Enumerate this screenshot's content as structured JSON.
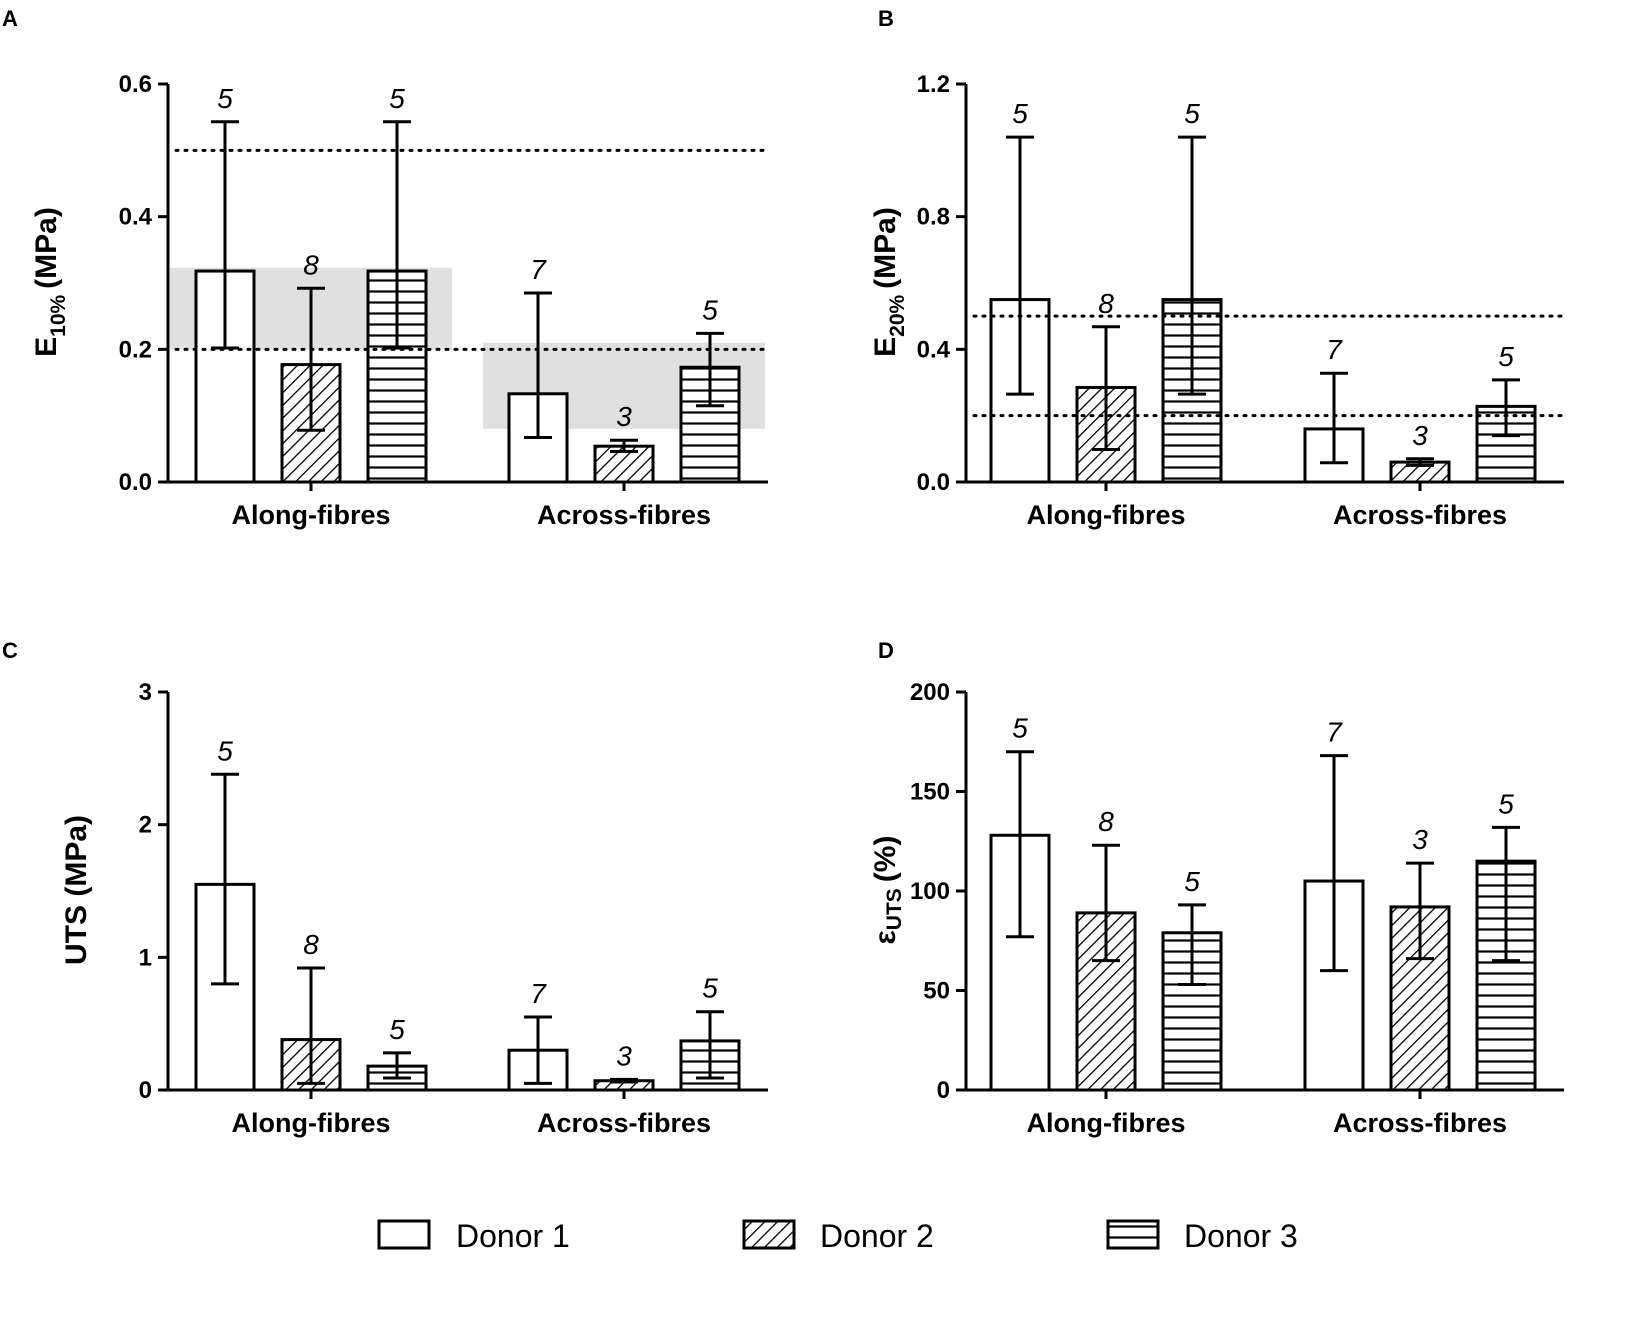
{
  "legend": {
    "items": [
      {
        "name": "Donor 1",
        "pattern": "none"
      },
      {
        "name": "Donor 2",
        "pattern": "diagonal"
      },
      {
        "name": "Donor 3",
        "pattern": "horizontal"
      }
    ]
  },
  "colors": {
    "axis": "#000000",
    "band": "#e0e0e0",
    "bar_fill": "#ffffff"
  },
  "chart_data": [
    {
      "panel": "A",
      "type": "bar",
      "ylabel_main": "E",
      "ylabel_sub": "10%",
      "ylabel_unit": "(MPa)",
      "categories": [
        "Along-fibres",
        "Across-fibres"
      ],
      "ylim": [
        0,
        0.6
      ],
      "yticks": [
        0.0,
        0.2,
        0.4,
        0.6
      ],
      "ytick_labels": [
        "0.0",
        "0.2",
        "0.4",
        "0.6"
      ],
      "series": [
        {
          "name": "Donor 1",
          "values": [
            0.318,
            0.133
          ],
          "err_low": [
            0.202,
            0.067
          ],
          "err_high": [
            0.543,
            0.285
          ],
          "n": [
            "5",
            "7"
          ]
        },
        {
          "name": "Donor 2",
          "values": [
            0.177,
            0.054
          ],
          "err_low": [
            0.078,
            0.046
          ],
          "err_high": [
            0.292,
            0.063
          ],
          "n": [
            "8",
            "3"
          ]
        },
        {
          "name": "Donor 3",
          "values": [
            0.318,
            0.173
          ],
          "err_low": [
            0.202,
            0.115
          ],
          "err_high": [
            0.543,
            0.224
          ],
          "n": [
            "5",
            "5"
          ]
        }
      ],
      "reference_lines": [
        0.5,
        0.2
      ],
      "bands": [
        {
          "category": "Along-fibres",
          "low": 0.2,
          "high": 0.323
        },
        {
          "category": "Across-fibres",
          "low": 0.08,
          "high": 0.21
        }
      ]
    },
    {
      "panel": "B",
      "type": "bar",
      "ylabel_main": "E",
      "ylabel_sub": "20%",
      "ylabel_unit": "(MPa)",
      "categories": [
        "Along-fibres",
        "Across-fibres"
      ],
      "ylim": [
        0,
        1.2
      ],
      "yticks": [
        0.0,
        0.4,
        0.8,
        1.2
      ],
      "ytick_labels": [
        "0.0",
        "0.4",
        "0.8",
        "1.2"
      ],
      "series": [
        {
          "name": "Donor 1",
          "values": [
            0.55,
            0.16
          ],
          "err_low": [
            0.265,
            0.058
          ],
          "err_high": [
            1.04,
            0.328
          ],
          "n": [
            "5",
            "7"
          ]
        },
        {
          "name": "Donor 2",
          "values": [
            0.285,
            0.06
          ],
          "err_low": [
            0.098,
            0.05
          ],
          "err_high": [
            0.468,
            0.07
          ],
          "n": [
            "8",
            "3"
          ]
        },
        {
          "name": "Donor 3",
          "values": [
            0.55,
            0.228
          ],
          "err_low": [
            0.265,
            0.14
          ],
          "err_high": [
            1.04,
            0.308
          ],
          "n": [
            "5",
            "5"
          ]
        }
      ],
      "reference_lines": [
        0.5,
        0.2
      ],
      "bands": []
    },
    {
      "panel": "C",
      "type": "bar",
      "ylabel_main": "UTS (MPa)",
      "ylabel_sub": "",
      "ylabel_unit": "",
      "categories": [
        "Along-fibres",
        "Across-fibres"
      ],
      "ylim": [
        0,
        3
      ],
      "yticks": [
        0,
        1,
        2,
        3
      ],
      "ytick_labels": [
        "0",
        "1",
        "2",
        "3"
      ],
      "series": [
        {
          "name": "Donor 1",
          "values": [
            1.55,
            0.3
          ],
          "err_low": [
            0.8,
            0.05
          ],
          "err_high": [
            2.38,
            0.55
          ],
          "n": [
            "5",
            "7"
          ]
        },
        {
          "name": "Donor 2",
          "values": [
            0.38,
            0.07
          ],
          "err_low": [
            0.05,
            0.06
          ],
          "err_high": [
            0.92,
            0.08
          ],
          "n": [
            "8",
            "3"
          ]
        },
        {
          "name": "Donor 3",
          "values": [
            0.18,
            0.37
          ],
          "err_low": [
            0.09,
            0.09
          ],
          "err_high": [
            0.28,
            0.59
          ],
          "n": [
            "5",
            "5"
          ]
        }
      ],
      "reference_lines": [],
      "bands": []
    },
    {
      "panel": "D",
      "type": "bar",
      "ylabel_main": "ε",
      "ylabel_sub": "UTS",
      "ylabel_unit": "(%)",
      "categories": [
        "Along-fibres",
        "Across-fibres"
      ],
      "ylim": [
        0,
        200
      ],
      "yticks": [
        0,
        50,
        100,
        150,
        200
      ],
      "ytick_labels": [
        "0",
        "50",
        "100",
        "150",
        "200"
      ],
      "series": [
        {
          "name": "Donor 1",
          "values": [
            128,
            105
          ],
          "err_low": [
            77,
            60
          ],
          "err_high": [
            170,
            168
          ],
          "n": [
            "5",
            "7"
          ]
        },
        {
          "name": "Donor 2",
          "values": [
            89,
            92
          ],
          "err_low": [
            65,
            66
          ],
          "err_high": [
            123,
            114
          ],
          "n": [
            "8",
            "3"
          ]
        },
        {
          "name": "Donor 3",
          "values": [
            79,
            115
          ],
          "err_low": [
            53,
            65
          ],
          "err_high": [
            93,
            132
          ],
          "n": [
            "5",
            "5"
          ]
        }
      ],
      "reference_lines": [],
      "bands": []
    }
  ]
}
